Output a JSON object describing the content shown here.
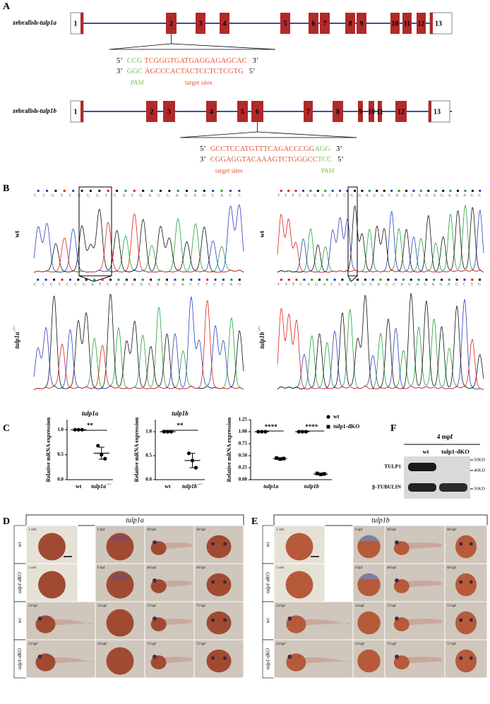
{
  "panel_a": {
    "label": "A",
    "genes": [
      {
        "prefix": "zebrafish-",
        "gene": "tulp1a",
        "exons": [
          "1",
          "2",
          "3",
          "4",
          "5",
          "6",
          "7",
          "8",
          "9",
          "10",
          "11",
          "12",
          "13"
        ],
        "strand1": [
          "5’",
          "CCG",
          "TCGGGTGATGAGGAGAGCAC",
          "3’"
        ],
        "strand2": [
          "3’",
          "GGC",
          "AGCCCACTACTCCTCTCGTG",
          "5’"
        ],
        "notes": [
          "PAM",
          "target sites"
        ]
      },
      {
        "prefix": "zebrafish-",
        "gene": "tulp1b",
        "exons": [
          "1",
          "2",
          "3",
          "4",
          "5",
          "6",
          "7",
          "8",
          "9",
          "10",
          "11",
          "12",
          "13"
        ],
        "strand1": [
          "5’",
          "GCCTCCATGTTTCAGACCCGG",
          "AGG",
          "3’"
        ],
        "strand2": [
          "3’",
          "CGGAGGTACAAAGTCTGGGCC",
          "TCC",
          "5’"
        ],
        "notes": [
          "target sites",
          "PAM"
        ]
      }
    ]
  },
  "panel_b": {
    "label": "B",
    "traces": [
      {
        "gene": "wt",
        "sequence": "CCGTCGGGTGATGAGGAGAGCACC"
      },
      {
        "gene": "tulp1a",
        "superscript": "−/−",
        "sequence": "CCGTCGGATGAGGAGAGCACCTCCAG"
      },
      {
        "gene": "wt",
        "sequence": "TTTCAGACCCGGAGGCAGCAGAGAGAGC"
      },
      {
        "gene": "tulp1b",
        "superscript": "−/−",
        "sequence": "TTTCAGACGAGGCAGCAGAGAGAGCTG"
      }
    ]
  },
  "panel_c": {
    "label": "C",
    "plots": [
      {
        "type": "dot",
        "title": "tulp1a",
        "ylabel": "Relative mRNA expression",
        "ylim": [
          0,
          1.2
        ],
        "yticks": [
          {
            "value": 0,
            "label": "0.0"
          },
          0.5,
          {
            "value": 1,
            "label": "1.0"
          }
        ],
        "groups": [
          {
            "name": "wt",
            "values": [
              1,
              1,
              1
            ],
            "mean": 1,
            "error": 0
          },
          {
            "name": "tulp1a",
            "superscript": "−/−",
            "values": [
              0.68,
              0.5,
              0.42
            ],
            "mean": 0.53,
            "error": 0.12
          }
        ],
        "significance": "**"
      },
      {
        "type": "dot",
        "title": "tulp1b",
        "ylabel": "Relative mRNA expression",
        "ylim": [
          0,
          1.25
        ],
        "yticks": [
          {
            "value": 0,
            "label": "0.0"
          },
          0.5,
          {
            "value": 1,
            "label": "1.0"
          }
        ],
        "groups": [
          {
            "name": "wt",
            "values": [
              1,
              1,
              1
            ],
            "mean": 1,
            "error": 0
          },
          {
            "name": "tulp1b",
            "superscript": "−/−",
            "values": [
              0.55,
              0.4,
              0.25
            ],
            "mean": 0.4,
            "error": 0.15
          }
        ],
        "significance": "**"
      },
      {
        "type": "dot_grouped",
        "ylabel": "Relative mRNA expression",
        "ylim": [
          0,
          1.25
        ],
        "yticks": [
          {
            "value": 0,
            "label": "0.00"
          },
          0.25,
          {
            "value": 0.5,
            "label": "0.50"
          },
          0.75,
          {
            "value": 1,
            "label": "1.00"
          },
          1.25
        ],
        "categories": [
          "tulp1a",
          "tulp1b"
        ],
        "series": [
          {
            "name": "wt",
            "marker": "circle",
            "values": [
              [
                1,
                1,
                1
              ],
              [
                1,
                1,
                1
              ]
            ],
            "mean": [
              1,
              1
            ],
            "error": [
              0,
              0
            ]
          },
          {
            "name": "tulp1-dKO",
            "marker": "square",
            "values": [
              [
                0.45,
                0.43,
                0.44
              ],
              [
                0.13,
                0.11,
                0.12
              ]
            ],
            "mean": [
              0.44,
              0.12
            ],
            "error": [
              0.01,
              0.01
            ]
          }
        ],
        "significance": [
          "****",
          "****"
        ],
        "legend": "upper right"
      }
    ]
  },
  "panel_f": {
    "label": "F",
    "title": "4 mpf",
    "lanes": [
      "wt",
      "tulp1-dKO"
    ],
    "rows": [
      "TULP1",
      "β-TUBULIN"
    ],
    "markers": [
      "50KD",
      "40KD",
      "50KD"
    ]
  },
  "panel_d": {
    "label": "D",
    "title": "tulp1a",
    "rows": [
      {
        "label": "wt",
        "cells": [
          "1 cell",
          "6 hpf",
          "48 hpf",
          "48 hpf"
        ]
      },
      {
        "label": "tulp1-dKO",
        "cells": [
          "1 cell",
          "6 hpf",
          "48 hpf",
          "48 hpf"
        ]
      },
      {
        "label": "wt",
        "cells": [
          "24 hpf",
          "24 hpf",
          "72 hpf",
          "72 hpf"
        ]
      },
      {
        "label": "tulp1-dKO",
        "cells": [
          "24 hpf",
          "24 hpf",
          "72 hpf",
          "72 hpf"
        ]
      }
    ]
  },
  "panel_e": {
    "label": "E",
    "title": "tulp1b",
    "rows": [
      {
        "label": "wt",
        "cells": [
          "1 cell",
          "6 hpf",
          "48 hpf",
          "48 hpf"
        ]
      },
      {
        "label": "tulp1-dKO",
        "cells": [
          "1 cell",
          "6 hpf",
          "48 hpf",
          "48 hpf"
        ]
      },
      {
        "label": "wt",
        "cells": [
          "24 hpf",
          "24 hpf",
          "72 hpf",
          "72 hpf"
        ]
      },
      {
        "label": "tulp1-dKO",
        "cells": [
          "24 hpf",
          "24 hpf",
          "72 hpf",
          "72 hpf"
        ]
      }
    ]
  }
}
